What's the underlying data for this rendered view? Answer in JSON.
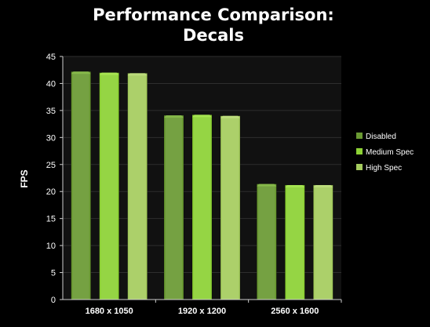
{
  "chart_data": {
    "type": "bar",
    "title_lines": [
      "Performance Comparison:",
      "Decals"
    ],
    "ylabel": "FPS",
    "xlabel": "",
    "ylim": [
      0,
      45
    ],
    "yticks": [
      0,
      5,
      10,
      15,
      20,
      25,
      30,
      35,
      40,
      45
    ],
    "categories": [
      "1680 x 1050",
      "1920 x 1200",
      "2560 x 1600"
    ],
    "series": [
      {
        "name": "Disabled",
        "values": [
          42.2,
          34.1,
          21.4
        ],
        "color": "#6a9a32",
        "top_color": "#86b84a"
      },
      {
        "name": "Medium Spec",
        "values": [
          42.0,
          34.2,
          21.2
        ],
        "color": "#8dd235",
        "top_color": "#a6e451"
      },
      {
        "name": "High Spec",
        "values": [
          41.9,
          34.0,
          21.2
        ],
        "color": "#a5cc5e",
        "top_color": "#bcdc7c"
      }
    ],
    "grid": true,
    "legend_position": "right",
    "background": "#000000",
    "plot_background": "#111111",
    "gridline_color": "#2e2e2e"
  }
}
